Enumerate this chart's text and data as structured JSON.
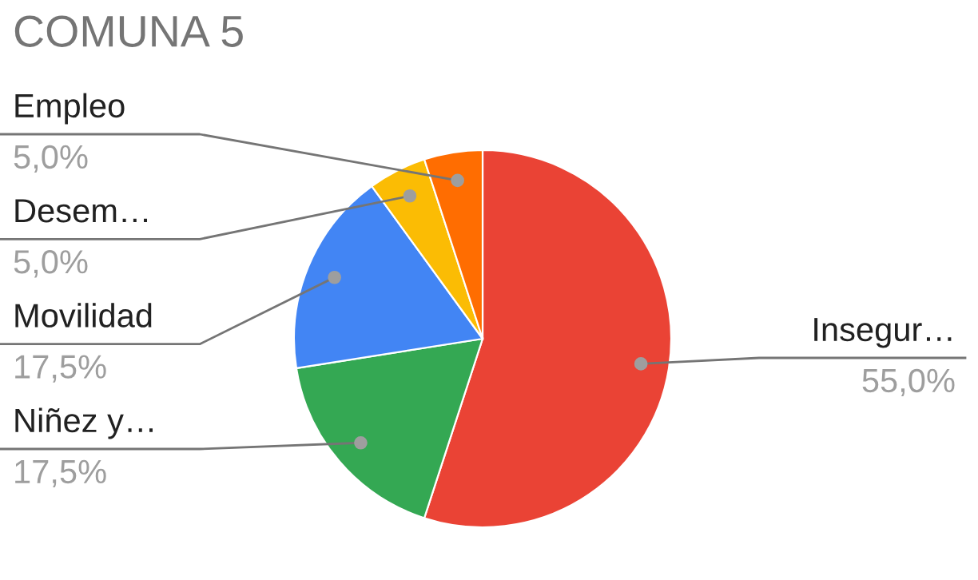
{
  "chart_data": {
    "type": "pie",
    "title": "COMUNA 5",
    "categories": [
      "Insegur…",
      "Niñez y…",
      "Movilidad",
      "Desem…",
      "Empleo"
    ],
    "values": [
      55,
      17.5,
      17.5,
      5,
      5
    ],
    "value_labels": [
      "55,0%",
      "17,5%",
      "17,5%",
      "5,0%",
      "5,0%"
    ],
    "colors": [
      "#ea4335",
      "#34a853",
      "#4285f4",
      "#fbbc04",
      "#ff6d01"
    ],
    "legend": false
  }
}
